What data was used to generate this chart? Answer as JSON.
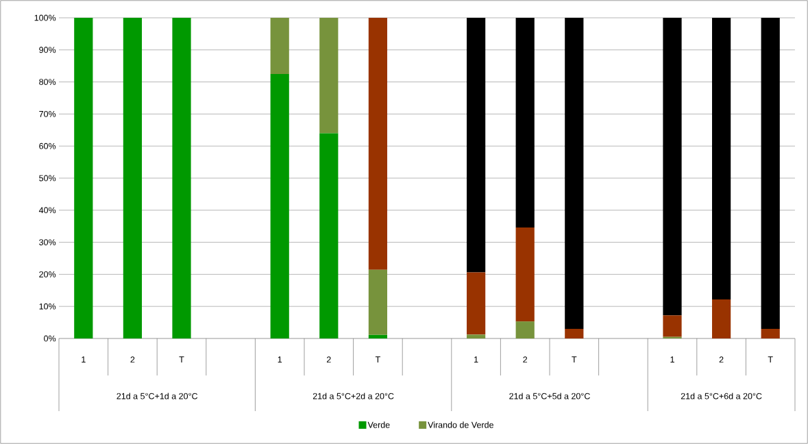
{
  "chart_data": {
    "type": "bar",
    "stacked": true,
    "categories": [
      "1",
      "2",
      "T",
      null,
      "1",
      "2",
      "T",
      null,
      "1",
      "2",
      "T",
      null,
      "1",
      "2",
      "T"
    ],
    "series": [
      {
        "name": "Verde",
        "color": "#009900",
        "values": [
          100,
          100,
          100,
          null,
          82.5,
          64.0,
          1.1,
          null,
          0,
          0,
          0,
          null,
          0,
          0,
          0
        ]
      },
      {
        "name": "Virando de Verde",
        "color": "#77933c",
        "values": [
          0,
          0,
          0,
          null,
          17.5,
          36.0,
          20.3,
          null,
          1.2,
          5.3,
          0,
          null,
          0.5,
          0,
          0
        ]
      },
      {
        "color": "#993300",
        "values": [
          0,
          0,
          0,
          null,
          0,
          0,
          78.6,
          null,
          19.4,
          29.3,
          3.0,
          null,
          6.7,
          12.2,
          3.0
        ]
      },
      {
        "color": "#000000",
        "values": [
          0,
          0,
          0,
          null,
          0,
          0,
          0,
          null,
          79.4,
          65.4,
          97.0,
          null,
          92.8,
          87.8,
          97.0
        ]
      }
    ],
    "ylim": [
      0,
      100
    ],
    "yticks": [
      {
        "value": 0,
        "label": "0%"
      },
      {
        "value": 10,
        "label": "10%"
      },
      {
        "value": 20,
        "label": "20%"
      },
      {
        "value": 30,
        "label": "30%"
      },
      {
        "value": 40,
        "label": "40%"
      },
      {
        "value": 50,
        "label": "50%"
      },
      {
        "value": 60,
        "label": "60%"
      },
      {
        "value": 70,
        "label": "70%"
      },
      {
        "value": 80,
        "label": "80%"
      },
      {
        "value": 90,
        "label": "90%"
      },
      {
        "value": 100,
        "label": "100%"
      }
    ],
    "grid": "y",
    "legend": "bottom",
    "annotations": [
      "21d a 5°C+1d a 20°C",
      "21d a 5°C+2d a 20°C",
      "21d a 5°C+5d a 20°C",
      "21d a 5°C+6d a 20°C"
    ]
  }
}
